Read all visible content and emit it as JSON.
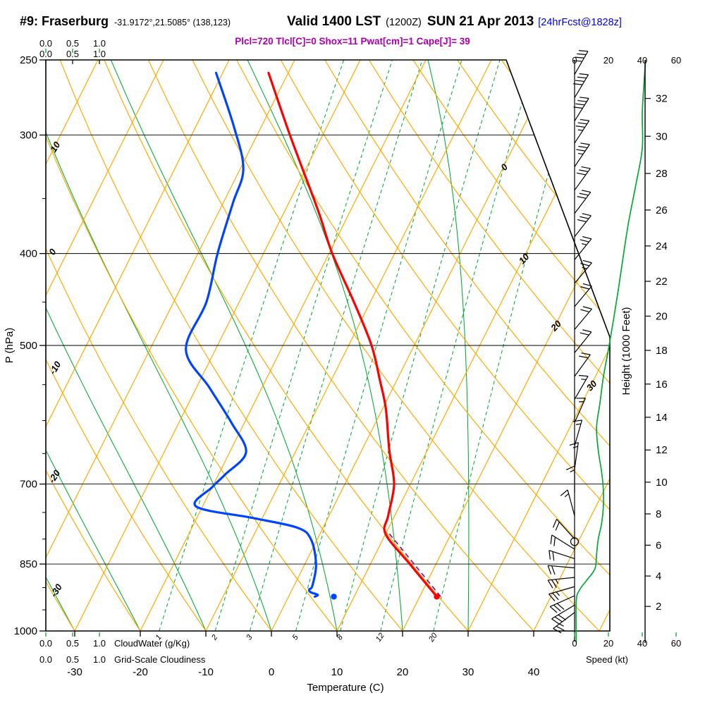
{
  "header": {
    "station": "#9: Fraserburg",
    "coords": "-31.9172°,21.5085° (138,123)",
    "valid": "Valid 1400 LST",
    "valid_z": "(1200Z)",
    "date": "SUN 21 Apr 2013",
    "fcst": "[24hrFcst@1828z]"
  },
  "params": {
    "text": "Plcl=720 Tlcl[C]=0 Shox=11 Pwat[cm]=1 Cape[J]= 39"
  },
  "axes": {
    "pressure_label": "P (hPa)",
    "pressure_ticks": [
      250,
      300,
      400,
      500,
      700,
      850,
      1000
    ],
    "pressure_minor_ticks": [
      350,
      450,
      550,
      600,
      650,
      750,
      800,
      900,
      950
    ],
    "temp_label": "Temperature (C)",
    "temp_ticks": [
      -30,
      -20,
      -10,
      0,
      10,
      20,
      30,
      40
    ],
    "height_label": "Height (1000 Feet)",
    "height_ticks": [
      2,
      4,
      6,
      8,
      10,
      12,
      14,
      16,
      18,
      20,
      22,
      24,
      26,
      28,
      30,
      32
    ],
    "speed_label": "Speed (kt)",
    "speed_ticks": [
      0,
      20,
      40,
      60
    ],
    "cloudwater_label": "CloudWater (g/Kg)",
    "cloudwater_ticks": [
      "0.0",
      "0.5",
      "1.0"
    ],
    "cloudiness_label": "Grid-Scale Cloudiness",
    "cloudiness_ticks": [
      "0.0",
      "0.5",
      "1.0"
    ]
  },
  "background": {
    "isotherm_step_c": 10,
    "isotherm_labels": [
      0,
      10,
      20,
      30
    ],
    "dry_adiabat_labels": [
      10,
      0,
      -10,
      -20,
      -30
    ],
    "mixing_ratio_values": [
      1,
      2,
      3,
      5,
      8,
      12,
      20
    ],
    "moist_adiabat_starts": [
      -40,
      -30,
      -20,
      -10,
      0,
      10,
      20,
      30
    ],
    "horizontal_lines_hpa": [
      300,
      400,
      500,
      700,
      850
    ]
  },
  "chart_data": {
    "type": "line",
    "subtype": "skewt_log_p_sounding",
    "title": "#9: Fraserburg Valid 1400 LST (1200Z) SUN 21 Apr 2013 [24hrFcst@1828z]",
    "xlabel": "Temperature (C)",
    "ylabel": "P (hPa)",
    "xlim": [
      -30,
      40
    ],
    "ylim": [
      1000,
      250
    ],
    "series": {
      "temperature_c": [
        [
          258,
          -43
        ],
        [
          300,
          -35
        ],
        [
          360,
          -25
        ],
        [
          400,
          -19.5
        ],
        [
          450,
          -12.5
        ],
        [
          500,
          -6.5
        ],
        [
          545,
          -2.5
        ],
        [
          583,
          0.5
        ],
        [
          645,
          4.2
        ],
        [
          700,
          7.5
        ],
        [
          755,
          9
        ],
        [
          790,
          10
        ],
        [
          850,
          16
        ],
        [
          920,
          22.6
        ]
      ],
      "dewpoint_c": [
        [
          258,
          -51
        ],
        [
          295,
          -44
        ],
        [
          326,
          -39.5
        ],
        [
          354,
          -38.5
        ],
        [
          400,
          -37
        ],
        [
          450,
          -35
        ],
        [
          505,
          -34.5
        ],
        [
          554,
          -28
        ],
        [
          603,
          -22
        ],
        [
          648,
          -17.5
        ],
        [
          684,
          -19
        ],
        [
          705,
          -20
        ],
        [
          739,
          -21
        ],
        [
          760,
          -11.5
        ],
        [
          778,
          -4
        ],
        [
          800,
          -1
        ],
        [
          850,
          1.7
        ],
        [
          896,
          2.8
        ],
        [
          904,
          2.6
        ],
        [
          910,
          3.0
        ],
        [
          916,
          4.3
        ],
        [
          920,
          4.0
        ]
      ],
      "parcel_c": [
        [
          920,
          23.2
        ],
        [
          790,
          10.6
        ]
      ],
      "surface_dots": {
        "temperature_c": [
          920,
          22.6
        ],
        "dewpoint_c": [
          920,
          6.9
        ]
      },
      "wind_speed_kt": [
        [
          250,
          42
        ],
        [
          265,
          41
        ],
        [
          285,
          40
        ],
        [
          310,
          40
        ],
        [
          340,
          36
        ],
        [
          370,
          32
        ],
        [
          400,
          29
        ],
        [
          435,
          26
        ],
        [
          470,
          23
        ],
        [
          505,
          20
        ],
        [
          540,
          17
        ],
        [
          575,
          15
        ],
        [
          610,
          13
        ],
        [
          645,
          14
        ],
        [
          680,
          16
        ],
        [
          710,
          17
        ],
        [
          740,
          17
        ],
        [
          770,
          16
        ],
        [
          800,
          14
        ],
        [
          830,
          13
        ],
        [
          860,
          12
        ],
        [
          885,
          7
        ],
        [
          905,
          3
        ],
        [
          930,
          1
        ],
        [
          1030,
          1
        ]
      ],
      "wind_barbs": [
        [
          259,
          40,
          30
        ],
        [
          274,
          40,
          31
        ],
        [
          290,
          38,
          32
        ],
        [
          306,
          36,
          33
        ],
        [
          324,
          35,
          34
        ],
        [
          343,
          32,
          36
        ],
        [
          363,
          30,
          37
        ],
        [
          384,
          28,
          38
        ],
        [
          406,
          26,
          39
        ],
        [
          430,
          25,
          40
        ],
        [
          455,
          22,
          40
        ],
        [
          481,
          20,
          40
        ],
        [
          509,
          20,
          39
        ],
        [
          539,
          18,
          36
        ],
        [
          570,
          16,
          30
        ],
        [
          603,
          15,
          24
        ],
        [
          638,
          15,
          16
        ],
        [
          675,
          15,
          8
        ],
        [
          715,
          15,
          0
        ],
        [
          756,
          15,
          -15
        ],
        [
          800,
          18,
          -42
        ],
        [
          820,
          18,
          -58
        ],
        [
          839,
          20,
          -72
        ],
        [
          858,
          22,
          -85
        ],
        [
          878,
          25,
          -96
        ],
        [
          898,
          25,
          -106
        ],
        [
          918,
          28,
          -114
        ],
        [
          939,
          28,
          -121
        ],
        [
          956,
          25,
          -127
        ]
      ],
      "station_circle_hpa": 805
    }
  },
  "colors": {
    "temperature": "#ff0000",
    "dewpoint": "#0044ff",
    "parcel": "#8800aa",
    "orange": "#ffaa00",
    "green": "#00aa33",
    "green_label": "#009922",
    "params_purple": "#aa00aa",
    "fcst_blue": "#0000dd",
    "black": "#000000"
  }
}
